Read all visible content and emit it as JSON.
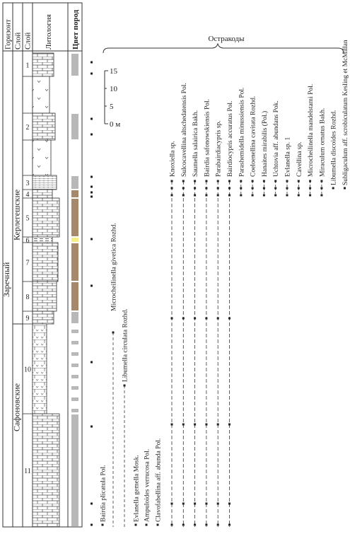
{
  "chart_data": {
    "type": "stratigraphic-range-chart",
    "headers": {
      "horizon": "Горизонт",
      "layer_a": "Слой",
      "layer_b": "Слой",
      "lithology": "Литология",
      "rock_color": "Цвет пород"
    },
    "horizons": [
      {
        "name": "Заречный",
        "from_layer": 1,
        "to_layer": 11
      },
      {
        "name": "Керлегешские",
        "from_layer": 1,
        "to_layer": 8
      },
      {
        "name": "Сафоновские",
        "from_layer": 9,
        "to_layer": 11
      }
    ],
    "layers": [
      {
        "label": "1",
        "lithology": "limestone",
        "color": "gray"
      },
      {
        "label": "",
        "lithology": "mudstone",
        "color": "white"
      },
      {
        "label": "2",
        "lithology": "limestone",
        "color": "gray"
      },
      {
        "label": "",
        "lithology": "mudstone",
        "color": "white"
      },
      {
        "label": "3",
        "lithology": "limestone-fine",
        "color": "gray"
      },
      {
        "label": "4",
        "lithology": "limestone",
        "color": "brown"
      },
      {
        "label": "5",
        "lithology": "limestone",
        "color": "brown"
      },
      {
        "label": "6",
        "lithology": "shale",
        "color": "yellow"
      },
      {
        "label": "7",
        "lithology": "limestone",
        "color": "brown"
      },
      {
        "label": "8",
        "lithology": "limestone",
        "color": "brown"
      },
      {
        "label": "9",
        "lithology": "limestone",
        "color": "gray"
      },
      {
        "label": "10",
        "lithology": "dolomitic",
        "color": "striped"
      },
      {
        "label": "11",
        "lithology": "limestone",
        "color": "gray"
      }
    ],
    "scale": {
      "ticks": [
        "15",
        "10",
        "5",
        "0 м"
      ]
    },
    "group_label": "Остракоды",
    "species_lower": [
      {
        "name": "Bairdia plicatula Pol.",
        "range": [
          "11",
          "11"
        ]
      },
      {
        "name": "Microcheilinella givetica Rozhd.",
        "range": [
          "11",
          "9"
        ]
      },
      {
        "name": "Libumella circulata Rozhd.",
        "range": [
          "11",
          "10"
        ]
      },
      {
        "name": "Evlanella gemella Mosk.",
        "range": [
          "11",
          "11"
        ]
      },
      {
        "name": "Ampuloides verrucosa Pol.",
        "range": [
          "11",
          "11"
        ]
      },
      {
        "name": "Clavofabellina aff. abunda Pol.",
        "range": [
          "11",
          "11"
        ]
      }
    ],
    "species_upper": [
      {
        "name": "Knoxiella sp.",
        "range": [
          "11",
          "3"
        ]
      },
      {
        "name": "Sulcocavellina altschedatensis Pol.",
        "range": [
          "11",
          "3"
        ]
      },
      {
        "name": "Saumella salairica Bakh.",
        "range": [
          "11",
          "3"
        ]
      },
      {
        "name": "Bairdia safonowskiensis Pol.",
        "range": [
          "11",
          "3"
        ]
      },
      {
        "name": "Parabairdiacypris sp.",
        "range": [
          "11",
          "3"
        ]
      },
      {
        "name": "Bairdiocypris accuratus Pol.",
        "range": [
          "11",
          "3"
        ]
      },
      {
        "name": "Parashemidella minussiensis Pol.",
        "range": [
          "3",
          "3"
        ]
      },
      {
        "name": "Coeloenellina cavitata Rozhd.",
        "range": [
          "3",
          "3"
        ]
      },
      {
        "name": "Hanaites mirabilis (Pol.)",
        "range": [
          "3",
          "3"
        ]
      },
      {
        "name": "Uchtovia aff. abundans Pok.",
        "range": [
          "3",
          "3"
        ]
      },
      {
        "name": "Evlanella sp. 1",
        "range": [
          "3",
          "3"
        ]
      },
      {
        "name": "Cavellina sp.",
        "range": [
          "3",
          "3"
        ]
      },
      {
        "name": "Microcheilinella mandelstami Pol.",
        "range": [
          "3",
          "3"
        ]
      },
      {
        "name": "Miraculum ornatus Bakh.",
        "range": [
          "3",
          "3"
        ]
      },
      {
        "name": "Libumella discoides Rozhd.",
        "range": [
          "3",
          "3"
        ]
      },
      {
        "name": "Subligaculum aff. scrobiculatum Kesling et McMillan",
        "range": [
          "3",
          "3"
        ]
      }
    ],
    "colors": {
      "gray": "#b8b8b8",
      "brown": "#a6896a",
      "yellow": "#f4ee84",
      "line": "#333333"
    }
  }
}
